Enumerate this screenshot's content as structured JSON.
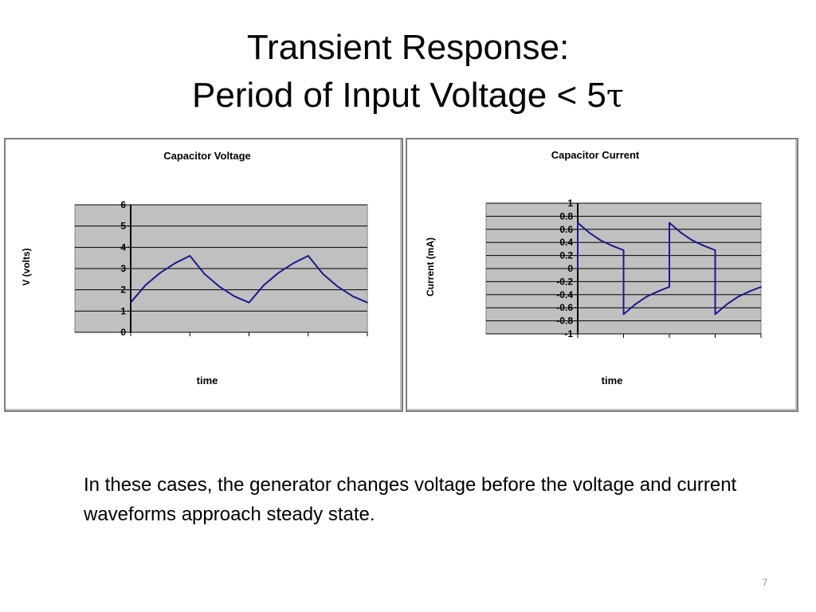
{
  "slide": {
    "title_line1": "Transient Response:",
    "title_line2_text": "Period of Input Voltage <  5",
    "title_line2_symbol": "τ",
    "body": "In these cases, the generator changes voltage before the voltage and current  waveforms approach steady state.",
    "page_number": "7"
  },
  "chart_data": [
    {
      "type": "line",
      "title": "Capacitor Voltage",
      "xlabel": "time",
      "ylabel": "V (volts)",
      "ylim": [
        0,
        6
      ],
      "yticks": [
        "0",
        "1",
        "2",
        "3",
        "4",
        "5",
        "6"
      ],
      "grid": true,
      "legend": "none",
      "plot_background": "#c0c0c0",
      "line_color": "#1a1a8c",
      "x": [
        0,
        0.25,
        0.5,
        0.75,
        1,
        1.25,
        1.5,
        1.75,
        2,
        2.25,
        2.5,
        2.75,
        3,
        3.25,
        3.5,
        3.75,
        4
      ],
      "y": [
        1.4,
        2.22,
        2.8,
        3.25,
        3.6,
        2.74,
        2.15,
        1.7,
        1.4,
        2.22,
        2.8,
        3.25,
        3.6,
        2.74,
        2.15,
        1.7,
        1.4
      ]
    },
    {
      "type": "line",
      "title": "Capacitor Current",
      "xlabel": "time",
      "ylabel": "Current (mA)",
      "ylim": [
        -1,
        1
      ],
      "yticks": [
        "-1",
        "-0.8",
        "-0.6",
        "-0.4",
        "-0.2",
        "0",
        "0.2",
        "0.4",
        "0.6",
        "0.8",
        "1"
      ],
      "grid": true,
      "legend": "none",
      "plot_background": "#c0c0c0",
      "line_color": "#1a1a8c",
      "x": [
        0,
        0,
        0.25,
        0.5,
        0.75,
        1,
        1,
        1.25,
        1.5,
        1.75,
        2,
        2,
        2.25,
        2.5,
        2.75,
        3,
        3,
        3.25,
        3.5,
        3.75,
        4
      ],
      "y": [
        0,
        0.7,
        0.55,
        0.43,
        0.35,
        0.28,
        -0.7,
        -0.55,
        -0.43,
        -0.35,
        -0.28,
        0.7,
        0.55,
        0.43,
        0.35,
        0.28,
        -0.7,
        -0.55,
        -0.43,
        -0.35,
        -0.28
      ]
    }
  ]
}
